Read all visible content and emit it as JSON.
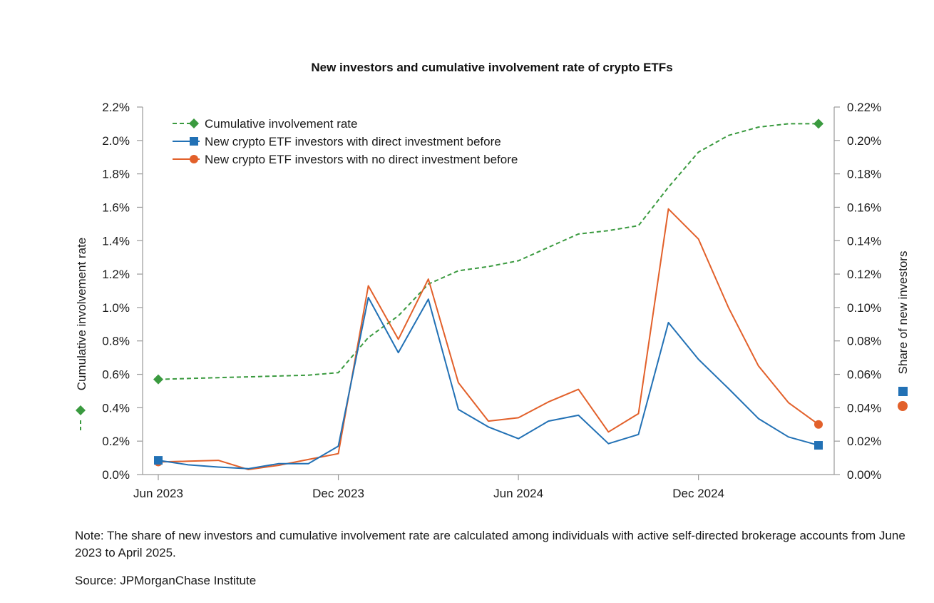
{
  "chart_data": {
    "type": "line",
    "title": "New investors and cumulative involvement rate of crypto ETFs",
    "x": [
      "2023-06",
      "2023-07",
      "2023-08",
      "2023-09",
      "2023-10",
      "2023-11",
      "2023-12",
      "2024-01",
      "2024-02",
      "2024-03",
      "2024-04",
      "2024-05",
      "2024-06",
      "2024-07",
      "2024-08",
      "2024-09",
      "2024-10",
      "2024-11",
      "2024-12",
      "2025-01",
      "2025-02",
      "2025-03",
      "2025-04"
    ],
    "x_tick_labels": [
      "Jun 2023",
      "Dec 2023",
      "Jun 2024",
      "Dec 2024"
    ],
    "y_left": {
      "label": "Cumulative involvement rate",
      "ylim": [
        0,
        2.2
      ],
      "ticks": [
        "0.0%",
        "0.2%",
        "0.4%",
        "0.6%",
        "0.8%",
        "1.0%",
        "1.2%",
        "1.4%",
        "1.6%",
        "1.8%",
        "2.0%",
        "2.2%"
      ]
    },
    "y_right": {
      "label": "Share of new investors",
      "ylim": [
        0,
        0.22
      ],
      "ticks": [
        "0.00%",
        "0.02%",
        "0.04%",
        "0.06%",
        "0.08%",
        "0.10%",
        "0.12%",
        "0.14%",
        "0.16%",
        "0.18%",
        "0.20%",
        "0.22%"
      ]
    },
    "series": [
      {
        "name": "Cumulative involvement rate",
        "axis": "left",
        "color": "#3a9a3f",
        "style": "dashed",
        "marker": "diamond",
        "values": [
          0.57,
          0.575,
          0.58,
          0.585,
          0.59,
          0.595,
          0.61,
          0.82,
          0.95,
          1.14,
          1.22,
          1.245,
          1.28,
          1.36,
          1.44,
          1.46,
          1.49,
          1.72,
          1.93,
          2.03,
          2.08,
          2.1,
          2.1
        ]
      },
      {
        "name": "New crypto ETF investors with direct investment before",
        "axis": "right",
        "color": "#2271b5",
        "style": "solid",
        "marker": "square",
        "values": [
          0.0085,
          0.0058,
          0.0045,
          0.0035,
          0.0065,
          0.0065,
          0.017,
          0.106,
          0.073,
          0.105,
          0.039,
          0.0285,
          0.0215,
          0.032,
          0.0355,
          0.0185,
          0.024,
          0.091,
          0.069,
          0.0515,
          0.0335,
          0.0225,
          0.0175
        ]
      },
      {
        "name": "New crypto ETF investors with no direct investment before",
        "axis": "right",
        "color": "#e2602a",
        "style": "solid",
        "marker": "circle",
        "values": [
          0.0075,
          0.008,
          0.0085,
          0.003,
          0.0055,
          0.009,
          0.0125,
          0.113,
          0.081,
          0.117,
          0.055,
          0.032,
          0.034,
          0.0435,
          0.051,
          0.0255,
          0.0365,
          0.159,
          0.141,
          0.1,
          0.065,
          0.043,
          0.03
        ]
      }
    ],
    "legend_position": "top-left"
  },
  "note": "Note: The share of new investors and cumulative involvement rate are calculated among individuals with active self-directed brokerage accounts from June 2023 to April 2025.",
  "source": "Source: JPMorganChase Institute"
}
